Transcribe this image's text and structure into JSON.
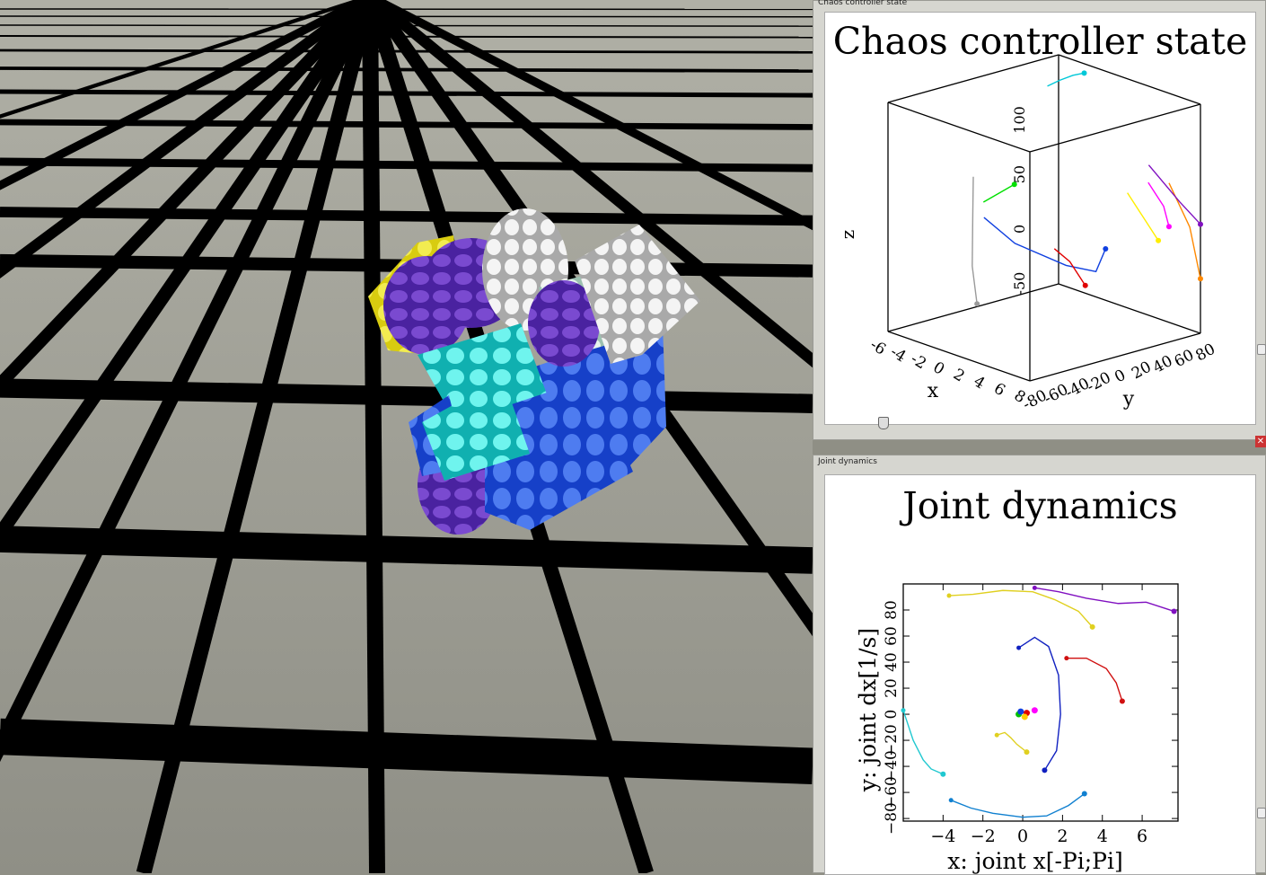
{
  "windows": {
    "chaos": {
      "title": "Chaos controller state"
    },
    "joint": {
      "title": "Joint dynamics"
    }
  },
  "chart_data": [
    {
      "type": "line",
      "title": "Chaos controller state",
      "xlabel": "x",
      "ylabel": "y",
      "zlabel": "z",
      "x_ticks": [
        "-6",
        "-4",
        "-2",
        "0",
        "2",
        "4",
        "6",
        "8"
      ],
      "y_ticks": [
        "-80",
        "-60",
        "-40",
        "-20",
        "0",
        "20",
        "40",
        "60",
        "80"
      ],
      "z_ticks": [
        "-50",
        "0",
        "50",
        "100"
      ],
      "grid": false,
      "series": [
        {
          "color": "#00c8d8",
          "points": [
            [
              -5,
              60,
              110
            ],
            [
              -4,
              62,
              118
            ],
            [
              -3,
              65,
              125
            ],
            [
              -2,
              66,
              130
            ]
          ]
        },
        {
          "color": "#9a9a9a",
          "points": [
            [
              -6,
              0,
              40
            ],
            [
              -5,
              -10,
              10
            ],
            [
              -4,
              -20,
              -30
            ],
            [
              -3,
              -25,
              -60
            ]
          ]
        },
        {
          "color": "#1040e0",
          "points": [
            [
              -6,
              10,
              0
            ],
            [
              -4,
              20,
              -20
            ],
            [
              0,
              30,
              -30
            ],
            [
              4,
              20,
              -20
            ],
            [
              6,
              10,
              10
            ]
          ]
        },
        {
          "color": "#ff00ff",
          "points": [
            [
              6,
              50,
              60
            ],
            [
              7,
              55,
              40
            ],
            [
              7,
              60,
              20
            ]
          ]
        },
        {
          "color": "#ffee00",
          "points": [
            [
              5,
              40,
              50
            ],
            [
              6,
              45,
              30
            ],
            [
              7,
              50,
              10
            ]
          ]
        },
        {
          "color": "#00e000",
          "points": [
            [
              -5,
              0,
              20
            ],
            [
              -4,
              5,
              30
            ],
            [
              -3,
              10,
              40
            ]
          ]
        },
        {
          "color": "#ff8800",
          "points": [
            [
              7,
              60,
              60
            ],
            [
              8,
              70,
              20
            ],
            [
              8,
              80,
              -30
            ]
          ]
        },
        {
          "color": "#e00000",
          "points": [
            [
              2,
              0,
              0
            ],
            [
              3,
              5,
              -10
            ],
            [
              4,
              10,
              -30
            ]
          ]
        },
        {
          "color": "#8010c0",
          "points": [
            [
              5,
              60,
              70
            ],
            [
              7,
              70,
              40
            ],
            [
              8,
              80,
              20
            ]
          ]
        }
      ]
    },
    {
      "type": "line",
      "title": "Joint dynamics",
      "xlabel": "x: joint x[-Pi;Pi]",
      "ylabel": "y: joint dx[1/s]",
      "x_ticks": [
        "−4",
        "−2",
        "0",
        "2",
        "4",
        "6"
      ],
      "y_ticks": [
        "−80",
        "−60",
        "−40",
        "−20",
        "0",
        "20",
        "40",
        "60",
        "80"
      ],
      "xlim": [
        -6,
        7.8
      ],
      "ylim": [
        -82,
        100
      ],
      "grid": false,
      "series": [
        {
          "color": "#8010c0",
          "x": [
            0.6,
            1.8,
            3.2,
            4.8,
            6.2,
            7.6
          ],
          "y": [
            97,
            94,
            89,
            85,
            86,
            79
          ]
        },
        {
          "color": "#e0d020",
          "x": [
            -3.7,
            -2.5,
            -1,
            0.5,
            1.6,
            2.8,
            3.5
          ],
          "y": [
            91,
            92,
            95,
            94,
            88,
            79,
            67
          ]
        },
        {
          "color": "#1020c0",
          "x": [
            -0.2,
            0.6,
            1.3,
            1.8,
            1.9,
            1.7,
            1.1
          ],
          "y": [
            51,
            59,
            52,
            30,
            0,
            -28,
            -43
          ]
        },
        {
          "color": "#d01010",
          "x": [
            2.2,
            3.2,
            4.2,
            4.7,
            5
          ],
          "y": [
            43,
            43,
            35,
            24,
            10
          ]
        },
        {
          "color": "#20c8d0",
          "x": [
            -6,
            -5.5,
            -5,
            -4.6,
            -4
          ],
          "y": [
            3,
            -20,
            -35,
            -42,
            -46
          ]
        },
        {
          "color": "#e0d020",
          "x": [
            -1.3,
            -0.9,
            -0.6,
            -0.3,
            0.2
          ],
          "y": [
            -16,
            -14,
            -18,
            -23,
            -29
          ]
        },
        {
          "color": "#1080d0",
          "x": [
            -3.6,
            -2.6,
            -1.5,
            0,
            1.2,
            2.3,
            3.1
          ],
          "y": [
            -66,
            -72,
            -76,
            -79,
            -78,
            -70,
            -61
          ]
        }
      ],
      "markers": [
        {
          "color": "#ff00ff",
          "x": 0.6,
          "y": 3
        },
        {
          "color": "#00c000",
          "x": -0.2,
          "y": 0
        },
        {
          "color": "#e00000",
          "x": 0.2,
          "y": 1
        },
        {
          "color": "#ffcc00",
          "x": 0.1,
          "y": -2
        },
        {
          "color": "#1040e0",
          "x": -0.1,
          "y": 2
        }
      ]
    }
  ]
}
